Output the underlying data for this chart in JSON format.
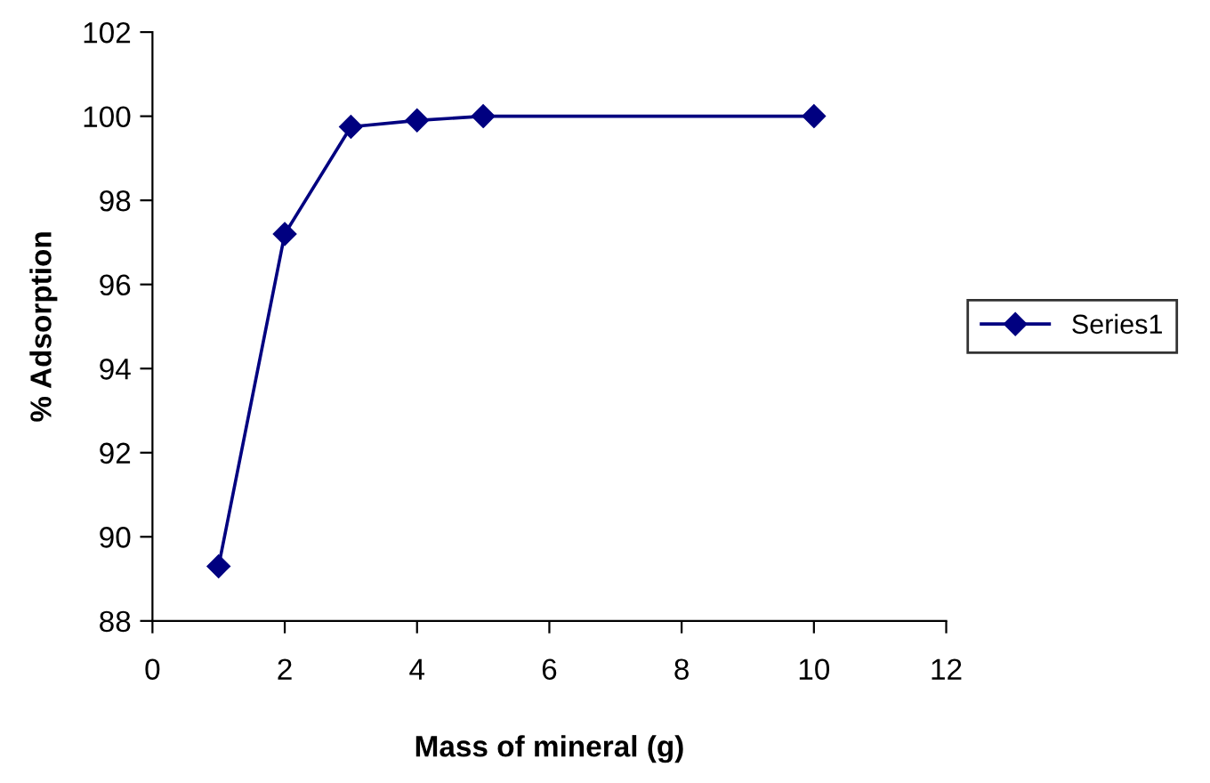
{
  "chart_data": {
    "type": "line",
    "xlabel": "Mass of mineral (g)",
    "ylabel": "% Adsorption",
    "x": [
      1,
      2,
      3,
      4,
      5,
      10
    ],
    "series": [
      {
        "name": "Series1",
        "color": "#000080",
        "values": [
          89.3,
          97.2,
          99.75,
          99.9,
          100,
          100
        ]
      }
    ],
    "xlim": [
      0,
      12
    ],
    "xticks": [
      0,
      2,
      4,
      6,
      8,
      10,
      12
    ],
    "ylim": [
      88,
      102
    ],
    "yticks": [
      88,
      90,
      92,
      94,
      96,
      98,
      100,
      102
    ],
    "marker": "diamond",
    "line_style": "solid",
    "grid": false,
    "legend": "right"
  }
}
